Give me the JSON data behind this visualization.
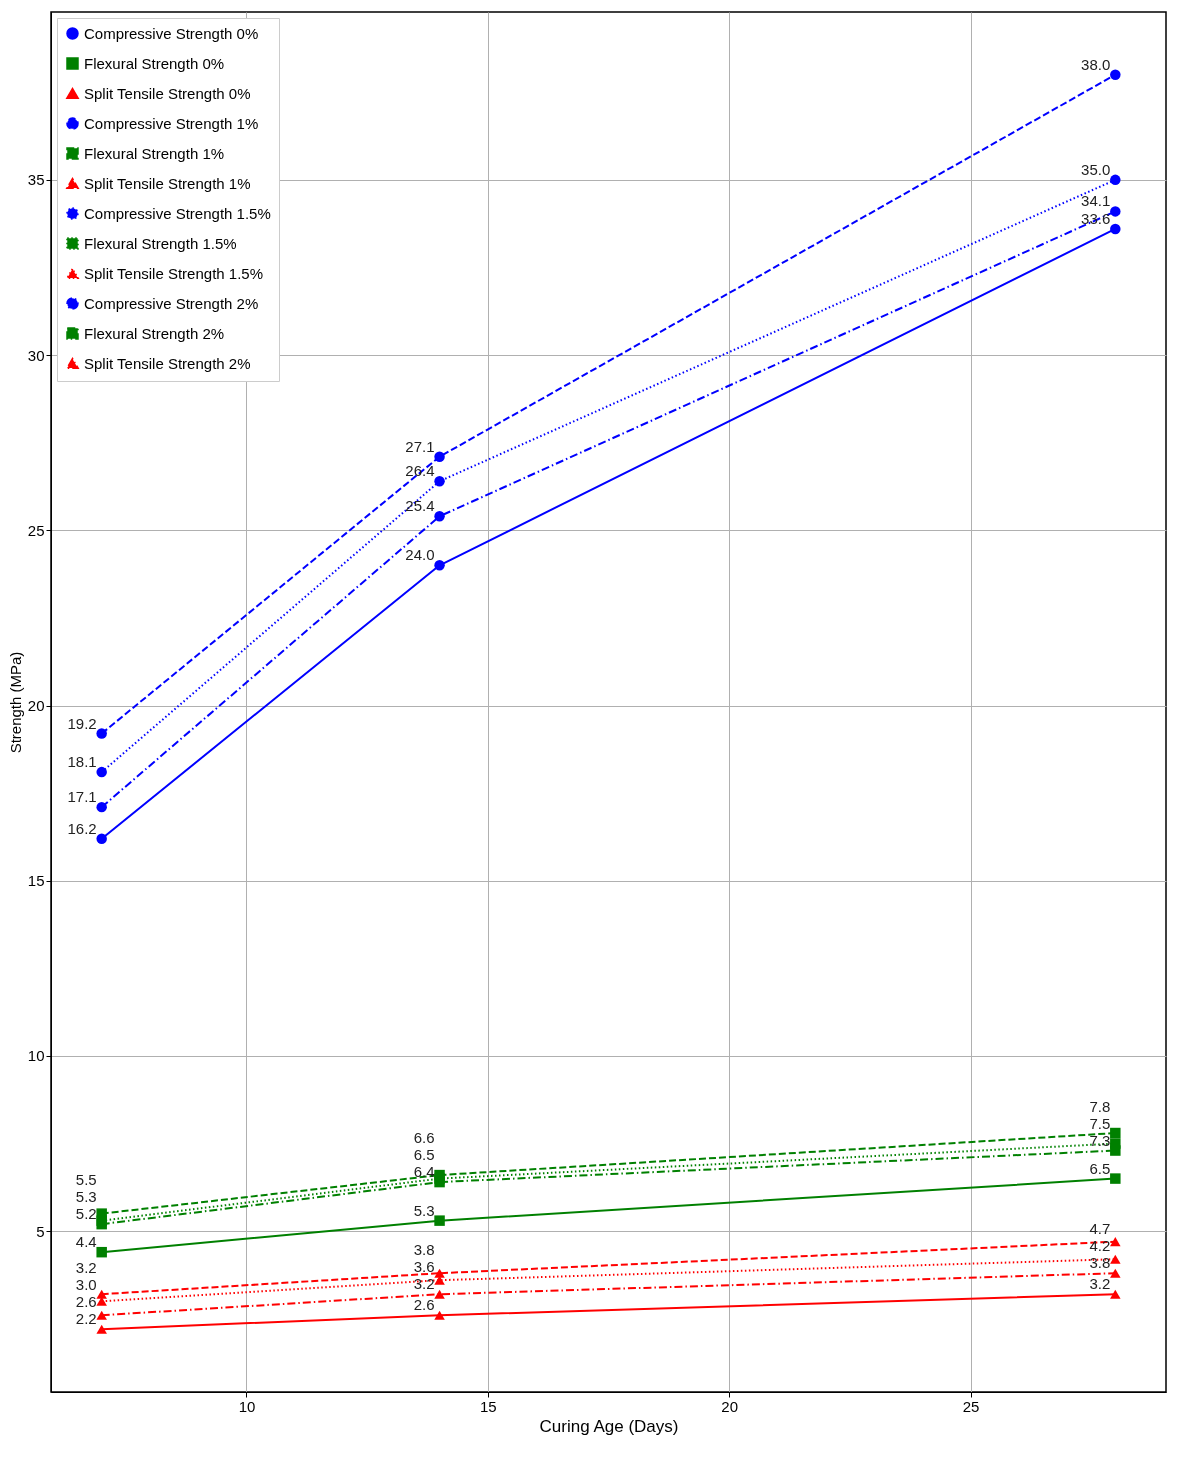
{
  "chart_data": {
    "type": "line",
    "xlabel": "Curing Age (Days)",
    "ylabel": "Strength (MPa)",
    "x": [
      7,
      14,
      28
    ],
    "xlim": [
      5.95,
      29.05
    ],
    "xticks": [
      10,
      15,
      20,
      25
    ],
    "ylim": [
      0.41,
      39.79
    ],
    "yticks": [
      5,
      10,
      15,
      20,
      25,
      30,
      35
    ],
    "grid": true,
    "legend": "top left",
    "series": [
      {
        "name": "Compressive Strength 0%",
        "color": "#0000ff",
        "marker": "circle",
        "line_style": "solid",
        "values": [
          16.2,
          24.0,
          33.6
        ],
        "value_labels": [
          "16.2",
          "24.0",
          "33.6"
        ]
      },
      {
        "name": "Flexural Strength 0%",
        "color": "#008000",
        "marker": "square",
        "line_style": "solid",
        "values": [
          4.4,
          5.3,
          6.5
        ],
        "value_labels": [
          "4.4",
          "5.3",
          "6.5"
        ]
      },
      {
        "name": "Split Tensile Strength 0%",
        "color": "#ff0000",
        "marker": "triangle",
        "line_style": "solid",
        "values": [
          2.2,
          2.6,
          3.2
        ],
        "value_labels": [
          "2.2",
          "2.6",
          "3.2"
        ]
      },
      {
        "name": "Compressive Strength 1%",
        "color": "#0000ff",
        "marker": "circle",
        "line_style": "dashed",
        "values": [
          19.2,
          27.1,
          38.0
        ],
        "value_labels": [
          "19.2",
          "27.1",
          "38.0"
        ]
      },
      {
        "name": "Flexural Strength 1%",
        "color": "#008000",
        "marker": "square",
        "line_style": "dashed",
        "values": [
          5.5,
          6.6,
          7.8
        ],
        "value_labels": [
          "5.5",
          "6.6",
          "7.8"
        ]
      },
      {
        "name": "Split Tensile Strength 1%",
        "color": "#ff0000",
        "marker": "triangle",
        "line_style": "dashed",
        "values": [
          3.2,
          3.8,
          4.7
        ],
        "value_labels": [
          "3.2",
          "3.8",
          "4.7"
        ]
      },
      {
        "name": "Compressive Strength 1.5%",
        "color": "#0000ff",
        "marker": "circle",
        "line_style": "dotted",
        "values": [
          18.1,
          26.4,
          35.0
        ],
        "value_labels": [
          "18.1",
          "26.4",
          "35.0"
        ]
      },
      {
        "name": "Flexural Strength 1.5%",
        "color": "#008000",
        "marker": "square",
        "line_style": "dotted",
        "values": [
          5.3,
          6.5,
          7.5
        ],
        "value_labels": [
          "5.3",
          "6.5",
          "7.5"
        ]
      },
      {
        "name": "Split Tensile Strength 1.5%",
        "color": "#ff0000",
        "marker": "triangle",
        "line_style": "dotted",
        "values": [
          3.0,
          3.6,
          4.2
        ],
        "value_labels": [
          "3.0",
          "3.6",
          "4.2"
        ]
      },
      {
        "name": "Compressive Strength 2%",
        "color": "#0000ff",
        "marker": "circle",
        "line_style": "dashdot",
        "values": [
          17.1,
          25.4,
          34.1
        ],
        "value_labels": [
          "17.1",
          "25.4",
          "34.1"
        ]
      },
      {
        "name": "Flexural Strength 2%",
        "color": "#008000",
        "marker": "square",
        "line_style": "dashdot",
        "values": [
          5.2,
          6.4,
          7.3
        ],
        "value_labels": [
          "5.2",
          "6.4",
          "7.3"
        ]
      },
      {
        "name": "Split Tensile Strength 2%",
        "color": "#ff0000",
        "marker": "triangle",
        "line_style": "dashdot",
        "values": [
          2.6,
          3.2,
          3.8
        ],
        "value_labels": [
          "2.6",
          "3.2",
          "3.8"
        ]
      }
    ]
  }
}
